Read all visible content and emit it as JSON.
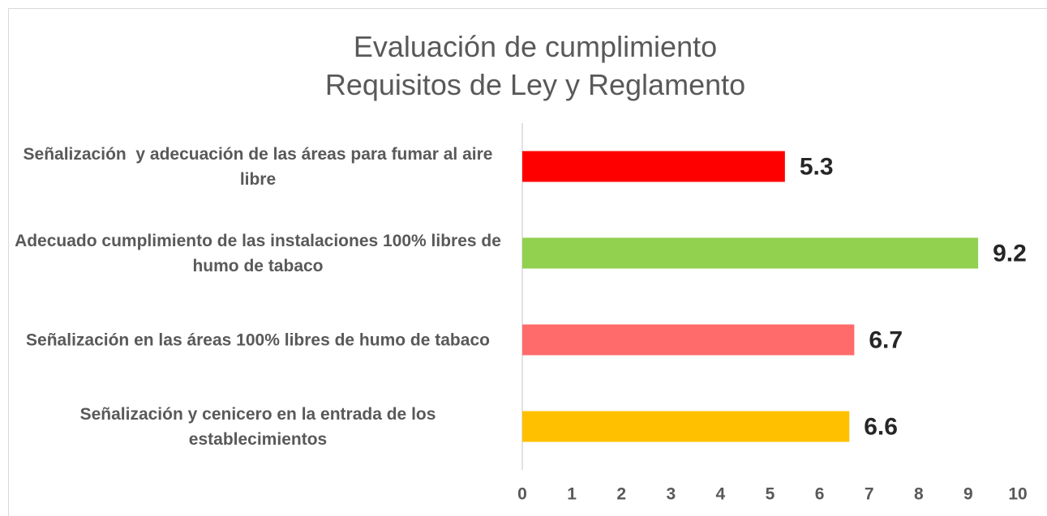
{
  "chart_data": {
    "type": "hbar",
    "title": "Evaluación de cumplimiento\nRequisitos de Ley y Reglamento",
    "categories": [
      "Señalización  y adecuación de las áreas para fumar al aire libre",
      "Adecuado cumplimiento de las instalaciones 100% libres de humo de tabaco",
      "Señalización en las áreas 100% libres de humo de tabaco",
      "Señalización y cenicero en la entrada de los establecimientos"
    ],
    "values": [
      5.3,
      9.2,
      6.7,
      6.6
    ],
    "colors": [
      "#ff0000",
      "#92d050",
      "#ff6b6b",
      "#ffc000"
    ],
    "xlim": [
      0,
      10
    ],
    "xticks": [
      0,
      1,
      2,
      3,
      4,
      5,
      6,
      7,
      8,
      9,
      10
    ],
    "grid": false
  }
}
